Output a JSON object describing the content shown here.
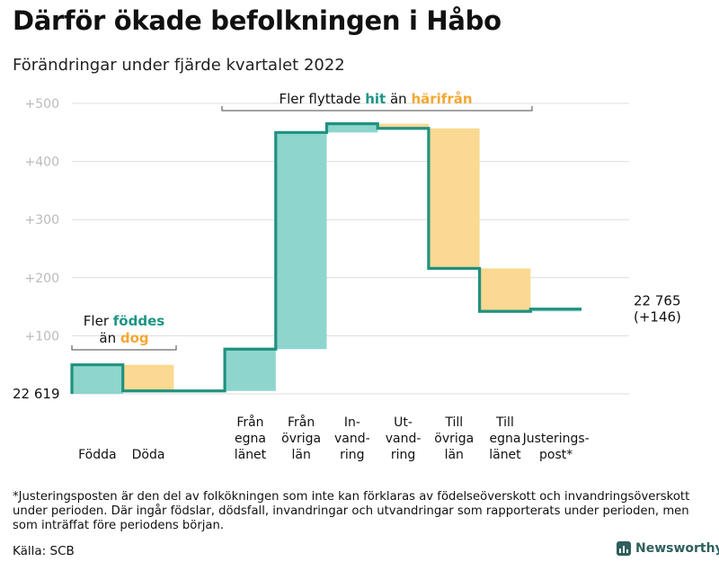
{
  "title": "Därför ökade befolkningen i Håbo",
  "subtitle": "Förändringar under fjärde kvartalet 2022",
  "footnote": "*Justeringsposten är den del av folkökningen som inte kan förklaras av födelseöverskott och invandringsöverskott under perioden. Där ingår födslar, dödsfall, invandringar och utvandringar som rapporterats under perioden, men som inträffat före periodens början.",
  "source": "Källa: SCB",
  "brand": "Newsworthy",
  "colors": {
    "increase": "#8ed6cd",
    "decrease": "#fbd992",
    "line": "#20917f",
    "teal_text": "#1e9585",
    "orange_text": "#f4a733",
    "grid": "#dddddd",
    "axis_text": "#bbbbbb"
  },
  "chart_data": {
    "type": "waterfall",
    "start_label": "22 619",
    "end_label": [
      "22 765",
      "(+146)"
    ],
    "y_ticks": [
      "+100",
      "+200",
      "+300",
      "+400",
      "+500"
    ],
    "ylim": [
      0,
      510
    ],
    "categories": [
      [
        "Födda"
      ],
      [
        "Döda"
      ],
      [],
      [
        "Från",
        "egna",
        "länet"
      ],
      [
        "Från",
        "övriga",
        "län"
      ],
      [
        "In-",
        "vand-",
        "ring"
      ],
      [
        "Ut-",
        "vand-",
        "ring"
      ],
      [
        "Till",
        "övriga",
        "län"
      ],
      [
        "Till",
        "egna",
        "länet"
      ],
      [
        "Justerings-",
        "post*"
      ]
    ],
    "changes": [
      50,
      -45,
      0,
      72,
      373,
      15,
      -8,
      -241,
      -74,
      4
    ],
    "annotations": [
      {
        "parts": [
          [
            "Fler ",
            "plain"
          ],
          [
            "föddes",
            "teal"
          ]
        ],
        "parts2": [
          [
            "än ",
            "plain"
          ],
          [
            "dog",
            "orange"
          ]
        ]
      },
      {
        "parts": [
          [
            "Fler flyttade ",
            "plain"
          ],
          [
            "hit",
            "teal"
          ],
          [
            " än ",
            "plain"
          ],
          [
            "härifrån",
            "orange"
          ]
        ]
      }
    ]
  }
}
